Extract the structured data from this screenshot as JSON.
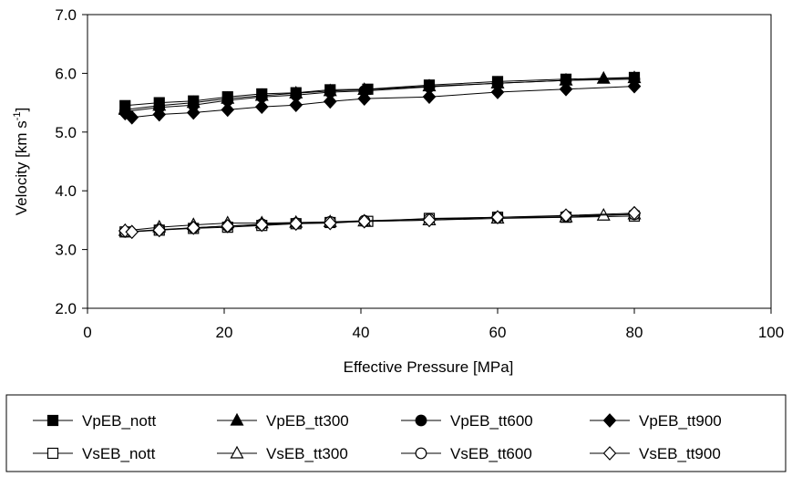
{
  "chart_data": {
    "type": "line",
    "xlabel": "Effective Pressure [MPa]",
    "ylabel": "Velocity [km s-1]",
    "ylabel_main": "Velocity [km s",
    "ylabel_sup": "-1",
    "ylabel_end": "]",
    "xlim": [
      0,
      100
    ],
    "ylim": [
      2.0,
      7.0
    ],
    "x_ticks": [
      0,
      20,
      40,
      60,
      80,
      100
    ],
    "x_tick_labels": [
      "0",
      "20",
      "40",
      "60",
      "80",
      "100"
    ],
    "y_ticks": [
      2.0,
      3.0,
      4.0,
      5.0,
      6.0,
      7.0
    ],
    "y_tick_labels": [
      "2.0",
      "3.0",
      "4.0",
      "5.0",
      "6.0",
      "7.0"
    ],
    "grid": false,
    "legend_position": "bottom",
    "series": [
      {
        "name": "VpEB_nott",
        "marker": "square",
        "filled": true,
        "x": [
          5.5,
          10.5,
          15.5,
          20.5,
          25.5,
          30.5,
          35.5,
          41,
          50,
          60,
          70,
          80
        ],
        "y": [
          5.45,
          5.5,
          5.53,
          5.6,
          5.65,
          5.67,
          5.72,
          5.73,
          5.8,
          5.86,
          5.9,
          5.93
        ]
      },
      {
        "name": "VpEB_tt300",
        "marker": "triangle",
        "filled": true,
        "x": [
          5.5,
          10.5,
          15.5,
          20.5,
          25.5,
          30.5,
          35.5,
          40.5,
          50,
          60,
          70,
          75.5,
          80
        ],
        "y": [
          5.38,
          5.45,
          5.5,
          5.57,
          5.62,
          5.66,
          5.7,
          5.72,
          5.78,
          5.83,
          5.88,
          5.91,
          5.92
        ]
      },
      {
        "name": "VpEB_tt600",
        "marker": "circle",
        "filled": true,
        "x": [
          5.5,
          10.5,
          15.5,
          20.5,
          25.5,
          30.5,
          35.5,
          40.5,
          50,
          60,
          70,
          80
        ],
        "y": [
          5.35,
          5.42,
          5.46,
          5.54,
          5.6,
          5.63,
          5.68,
          5.7,
          5.77,
          5.83,
          5.88,
          5.9
        ]
      },
      {
        "name": "VpEB_tt900",
        "marker": "diamond",
        "filled": true,
        "x": [
          5.5,
          6.5,
          10.5,
          15.5,
          20.5,
          25.5,
          30.5,
          35.5,
          40.5,
          50,
          60,
          70,
          80
        ],
        "y": [
          5.32,
          5.25,
          5.3,
          5.33,
          5.38,
          5.43,
          5.46,
          5.52,
          5.57,
          5.6,
          5.68,
          5.73,
          5.78
        ]
      },
      {
        "name": "VsEB_nott",
        "marker": "square",
        "filled": false,
        "x": [
          5.5,
          10.5,
          15.5,
          20.5,
          25.5,
          30.5,
          35.5,
          41,
          50,
          60,
          70,
          80
        ],
        "y": [
          3.3,
          3.33,
          3.36,
          3.38,
          3.41,
          3.44,
          3.46,
          3.48,
          3.53,
          3.55,
          3.55,
          3.57
        ]
      },
      {
        "name": "VsEB_tt300",
        "marker": "triangle",
        "filled": false,
        "x": [
          5.5,
          10.5,
          15.5,
          20.5,
          25.5,
          30.5,
          35.5,
          40.5,
          50,
          60,
          70,
          75.5,
          80
        ],
        "y": [
          3.32,
          3.38,
          3.42,
          3.45,
          3.45,
          3.46,
          3.47,
          3.48,
          3.5,
          3.53,
          3.55,
          3.58,
          3.6
        ]
      },
      {
        "name": "VsEB_tt600",
        "marker": "circle",
        "filled": false,
        "x": [
          5.5,
          10.5,
          15.5,
          20.5,
          25.5,
          30.5,
          35.5,
          40.5,
          50,
          60,
          70,
          80
        ],
        "y": [
          3.3,
          3.34,
          3.37,
          3.4,
          3.43,
          3.45,
          3.47,
          3.49,
          3.52,
          3.55,
          3.57,
          3.6
        ]
      },
      {
        "name": "VsEB_tt900",
        "marker": "diamond",
        "filled": false,
        "x": [
          5.5,
          6.5,
          10.5,
          15.5,
          20.5,
          25.5,
          30.5,
          35.5,
          40.5,
          50,
          60,
          70,
          80
        ],
        "y": [
          3.32,
          3.3,
          3.33,
          3.37,
          3.4,
          3.42,
          3.44,
          3.45,
          3.48,
          3.5,
          3.55,
          3.58,
          3.62
        ]
      }
    ]
  }
}
